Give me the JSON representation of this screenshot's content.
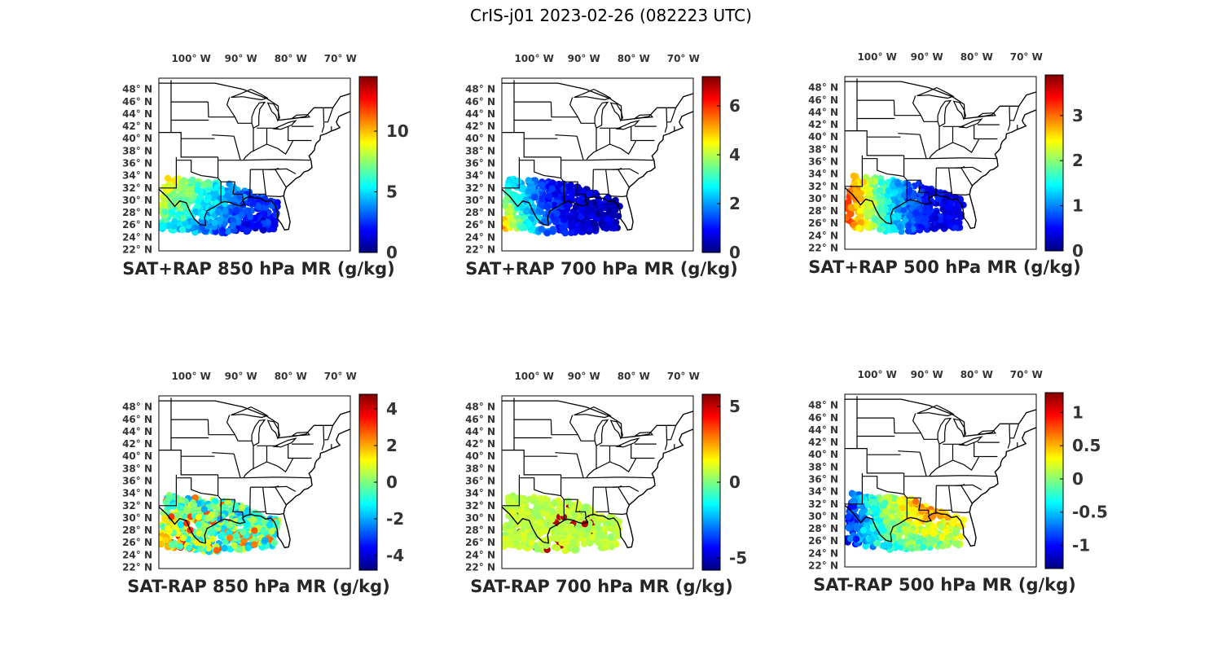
{
  "title": "CrIS-j01 2023-02-26 (082223 UTC)",
  "map": {
    "lon_ticks": [
      "100° W",
      "90° W",
      "80° W",
      "70° W"
    ],
    "lat_ticks": [
      "48° N",
      "46° N",
      "44° N",
      "42° N",
      "40° N",
      "38° N",
      "36° N",
      "34° N",
      "32° N",
      "30° N",
      "28° N",
      "26° N",
      "24° N",
      "22° N"
    ],
    "colormap": [
      "#00007f",
      "#0000ff",
      "#007fff",
      "#00ffff",
      "#7fff7f",
      "#ffff00",
      "#ff7f00",
      "#ff0000",
      "#7f0000"
    ],
    "boundary_color": "#000000"
  },
  "panels": [
    {
      "title": "SAT+RAP 850 hPa MR (g/kg)",
      "colorbar": {
        "min": 0,
        "max": 14.5,
        "ticks": [
          "0",
          "5",
          "10"
        ],
        "tick_values": [
          0,
          5,
          10
        ]
      },
      "field": "mixing ratio (g/kg) at 850 hPa, 6 to 12 g/kg inland Texas, 2 to 5 g/kg over Gulf of Mexico"
    },
    {
      "title": "SAT+RAP 700 hPa MR (g/kg)",
      "colorbar": {
        "min": 0,
        "max": 7.2,
        "ticks": [
          "0",
          "2",
          "4",
          "6"
        ],
        "tick_values": [
          0,
          2,
          4,
          6
        ]
      },
      "field": "mixing ratio (g/kg) at 700 hPa, 4 to 6 g/kg over south Texas, 0.3 to 1 g/kg over Louisiana and Gulf"
    },
    {
      "title": "SAT+RAP 500 hPa MR (g/kg)",
      "colorbar": {
        "min": 0,
        "max": 3.9,
        "ticks": [
          "0",
          "1",
          "2",
          "3"
        ],
        "tick_values": [
          0,
          1,
          2,
          3
        ]
      },
      "field": "mixing ratio (g/kg) at 500 hPa, 2 to 3.5 g/kg over Texas, 0.2 to 0.8 g/kg over eastern Gulf"
    },
    {
      "title": "SAT-RAP 850 hPa MR (g/kg)",
      "colorbar": {
        "min": -4.8,
        "max": 4.8,
        "ticks": [
          "-4",
          "-2",
          "0",
          "2",
          "4"
        ],
        "tick_values": [
          -4,
          -2,
          0,
          2,
          4
        ]
      },
      "field": "difference, mostly -1 to 1 g/kg, up to +4 g/kg over south Texas"
    },
    {
      "title": "SAT-RAP 700 hPa MR (g/kg)",
      "colorbar": {
        "min": -5.8,
        "max": 5.8,
        "ticks": [
          "-5",
          "0",
          "5"
        ],
        "tick_values": [
          -5,
          0,
          5
        ]
      },
      "field": "difference, mostly near 0 to +1 g/kg, isolated +3 to +5 g/kg"
    },
    {
      "title": "SAT-RAP 500 hPa MR (g/kg)",
      "colorbar": {
        "min": -1.35,
        "max": 1.3,
        "ticks": [
          "-1",
          "-0.5",
          "0",
          "0.5",
          "1"
        ],
        "tick_values": [
          -1,
          -0.5,
          0,
          0.5,
          1
        ]
      },
      "field": "difference, -1 to -0.5 g/kg west Texas, +0.5 to +1 g/kg Louisiana"
    }
  ]
}
